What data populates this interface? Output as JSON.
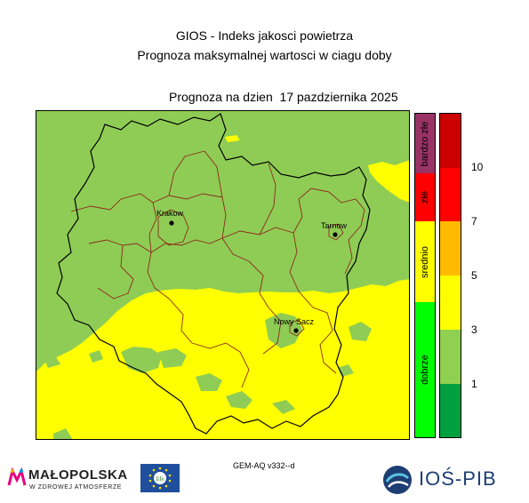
{
  "header": {
    "title_line1": "GIOS - Indeks jakosci powietrza",
    "title_line2": "Prognoza maksymalnej wartosci w ciagu doby",
    "forecast_label": "Prognoza na dzien  17 pazdziernika 2025"
  },
  "cities": [
    {
      "name": "Krakow"
    },
    {
      "name": "Tarnow"
    },
    {
      "name": "Nowy Sacz"
    }
  ],
  "legend": {
    "categories": [
      {
        "label": "bardzo złe",
        "color": "#993366"
      },
      {
        "label": "złe",
        "color": "#ff0000"
      },
      {
        "label": "srednio",
        "color": "#ffff00"
      },
      {
        "label": "dobrze",
        "color": "#00ff00"
      }
    ],
    "scale_colors": [
      "#cc0000",
      "#ff0000",
      "#ffbb00",
      "#ffff00",
      "#90d050",
      "#00a040"
    ],
    "scale_ticks": [
      "10",
      "7",
      "5",
      "3",
      "1"
    ]
  },
  "colors": {
    "good_green": "#8fcc55",
    "medium_yellow": "#ffff00",
    "county_border": "#8b2a1a",
    "region_border": "#000000"
  },
  "footer": {
    "model": "GEM-AQ v332--d",
    "logo_malopolska": "MAŁOPOLSKA",
    "logo_malopolska_sub": "W ZDROWEJ ATMOSFERZE",
    "logo_eu": "life",
    "logo_ios": "IOŚ-PIB"
  }
}
